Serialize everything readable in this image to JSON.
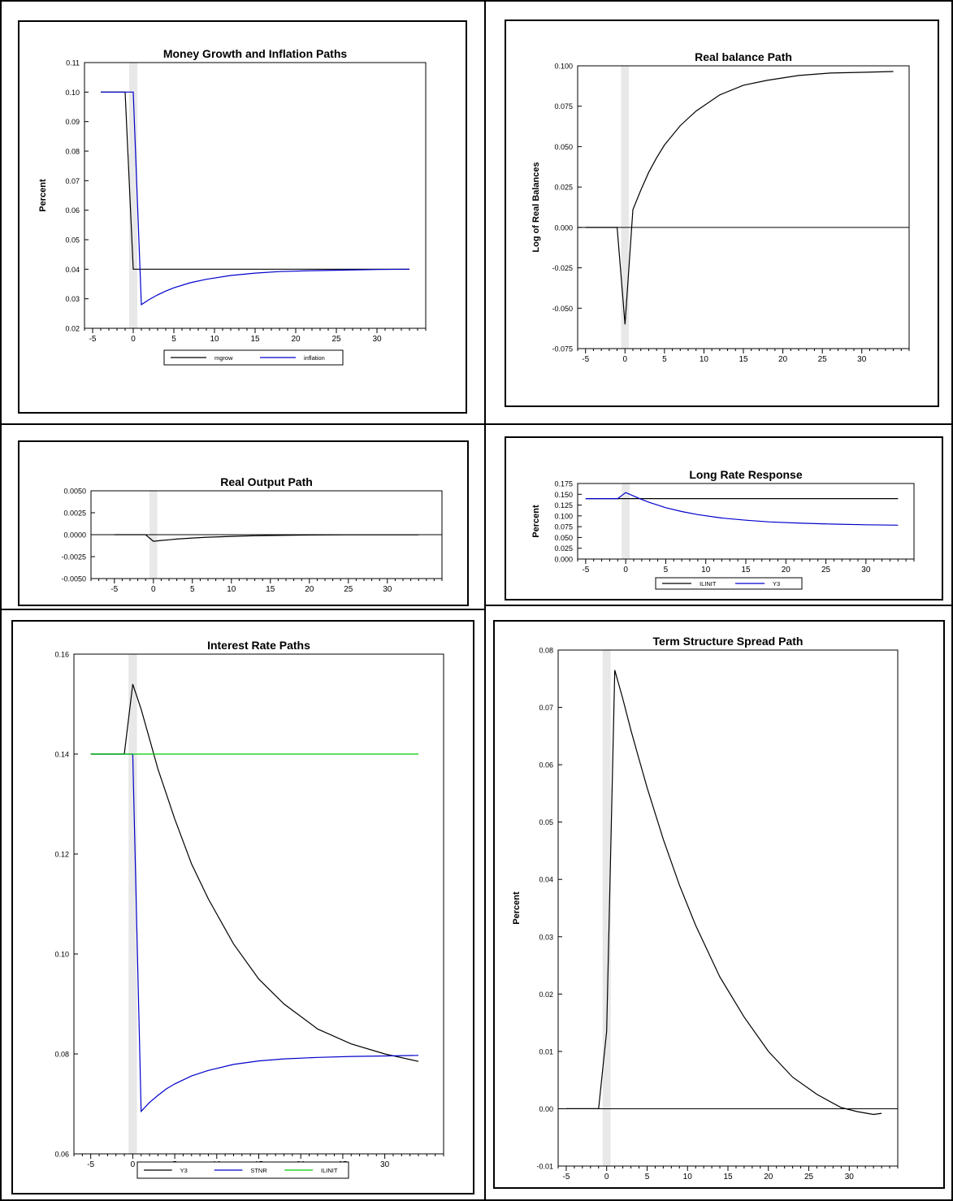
{
  "colors": {
    "black": "#000000",
    "blue": "#0000CC",
    "green": "#00CC00",
    "shade": "#E8E8E8"
  },
  "chart_data": [
    {
      "type": "line",
      "title": "Money Growth and Inflation Paths",
      "ylabel": "Percent",
      "xlim": [
        -6,
        36
      ],
      "ylim": [
        0.02,
        0.11
      ],
      "xticks": [
        -5,
        0,
        5,
        10,
        15,
        20,
        25,
        30
      ],
      "yticks": [
        0.02,
        0.03,
        0.04,
        0.05,
        0.06,
        0.07,
        0.08,
        0.09,
        0.1,
        0.11
      ],
      "ytick_labels": [
        "0.02",
        "0.03",
        "0.04",
        "0.05",
        "0.06",
        "0.07",
        "0.08",
        "0.09",
        "0.10",
        "0.11"
      ],
      "shade": [
        -0.5,
        0.5
      ],
      "legend": "bottom",
      "series": [
        {
          "name": "mgrow",
          "color": "black",
          "x": [
            -4,
            -1,
            0,
            1,
            34
          ],
          "y": [
            0.1,
            0.1,
            0.04,
            0.04,
            0.04
          ]
        },
        {
          "name": "inflation",
          "color": "blue",
          "x": [
            -4,
            0,
            1,
            2,
            3,
            4,
            5,
            7,
            9,
            12,
            15,
            18,
            22,
            26,
            30,
            34
          ],
          "y": [
            0.1,
            0.1,
            0.028,
            0.0298,
            0.0313,
            0.0326,
            0.0337,
            0.0354,
            0.0366,
            0.0379,
            0.0387,
            0.0392,
            0.0395,
            0.0397,
            0.0399,
            0.04
          ]
        }
      ]
    },
    {
      "type": "line",
      "title": "Real balance Path",
      "ylabel": "Log of Real Balances",
      "xlim": [
        -6,
        36
      ],
      "ylim": [
        -0.075,
        0.1
      ],
      "xticks": [
        -5,
        0,
        5,
        10,
        15,
        20,
        25,
        30
      ],
      "yticks": [
        -0.075,
        -0.05,
        -0.025,
        0.0,
        0.025,
        0.05,
        0.075,
        0.1
      ],
      "ytick_labels": [
        "-0.075",
        "-0.050",
        "-0.025",
        "0.000",
        "0.025",
        "0.050",
        "0.075",
        "0.100"
      ],
      "zero_line": 0,
      "shade": [
        -0.5,
        0.5
      ],
      "series": [
        {
          "name": "",
          "color": "black",
          "x": [
            -5,
            -1,
            0,
            1,
            2,
            3,
            4,
            5,
            7,
            9,
            12,
            15,
            18,
            22,
            26,
            30,
            34
          ],
          "y": [
            0,
            0,
            -0.06,
            0.011,
            0.023,
            0.034,
            0.043,
            0.051,
            0.063,
            0.072,
            0.082,
            0.088,
            0.091,
            0.094,
            0.0955,
            0.096,
            0.0965
          ]
        }
      ]
    },
    {
      "type": "line",
      "title": "Real Output Path",
      "ylabel": "",
      "xlim": [
        -8,
        37
      ],
      "ylim": [
        -0.005,
        0.005
      ],
      "xticks": [
        -5,
        0,
        5,
        10,
        15,
        20,
        25,
        30
      ],
      "yticks": [
        -0.005,
        -0.0025,
        0.0,
        0.0025,
        0.005
      ],
      "ytick_labels": [
        "-0.0050",
        "-0.0025",
        "0.0000",
        "0.0025",
        "0.0050"
      ],
      "zero_line": 0,
      "shade": [
        -0.5,
        0.5
      ],
      "series": [
        {
          "name": "",
          "color": "black",
          "x": [
            -5,
            -1,
            0,
            1,
            2,
            3,
            5,
            7,
            10,
            13,
            16,
            20,
            25,
            30,
            34
          ],
          "y": [
            0,
            0,
            -0.00075,
            -0.00066,
            -0.00058,
            -0.0005,
            -0.00038,
            -0.00029,
            -0.00019,
            -0.00012,
            -8e-05,
            -4e-05,
            -2e-05,
            -1e-05,
            -1e-05
          ]
        }
      ]
    },
    {
      "type": "line",
      "title": "Long Rate Response",
      "ylabel": "Percent",
      "xlim": [
        -6,
        36
      ],
      "ylim": [
        0.0,
        0.175
      ],
      "xticks": [
        -5,
        0,
        5,
        10,
        15,
        20,
        25,
        30
      ],
      "yticks": [
        0.0,
        0.025,
        0.05,
        0.075,
        0.1,
        0.125,
        0.15,
        0.175
      ],
      "ytick_labels": [
        "0.000",
        "0.025",
        "0.050",
        "0.075",
        "0.100",
        "0.125",
        "0.150",
        "0.175"
      ],
      "shade": [
        -0.5,
        0.5
      ],
      "legend": "bottom",
      "series": [
        {
          "name": "ILINIT",
          "color": "black",
          "x": [
            -5,
            34
          ],
          "y": [
            0.14,
            0.14
          ]
        },
        {
          "name": "Y3",
          "color": "blue",
          "x": [
            -5,
            -1,
            0,
            1,
            2,
            3,
            4,
            5,
            7,
            9,
            12,
            15,
            18,
            22,
            26,
            30,
            34
          ],
          "y": [
            0.14,
            0.14,
            0.154,
            0.146,
            0.138,
            0.131,
            0.125,
            0.119,
            0.11,
            0.103,
            0.095,
            0.09,
            0.086,
            0.083,
            0.081,
            0.0795,
            0.0785
          ]
        }
      ]
    },
    {
      "type": "line",
      "title": "Interest Rate Paths",
      "ylabel": "",
      "xlim": [
        -7,
        37
      ],
      "ylim": [
        0.06,
        0.16
      ],
      "xticks": [
        -5,
        0,
        5,
        10,
        15,
        20,
        25,
        30
      ],
      "yticks": [
        0.06,
        0.08,
        0.1,
        0.12,
        0.14,
        0.16
      ],
      "ytick_labels": [
        "0.06",
        "0.08",
        "0.10",
        "0.12",
        "0.14",
        "0.16"
      ],
      "shade": [
        -0.5,
        0.5
      ],
      "legend": "bottom",
      "series": [
        {
          "name": "Y3",
          "color": "black",
          "x": [
            -5,
            -1,
            0,
            1,
            2,
            3,
            4,
            5,
            7,
            9,
            12,
            15,
            18,
            22,
            26,
            30,
            34
          ],
          "y": [
            0.14,
            0.14,
            0.154,
            0.149,
            0.143,
            0.137,
            0.132,
            0.127,
            0.118,
            0.111,
            0.102,
            0.095,
            0.09,
            0.085,
            0.082,
            0.08,
            0.0785
          ]
        },
        {
          "name": "STNR",
          "color": "blue",
          "x": [
            -5,
            0,
            1,
            2,
            3,
            4,
            5,
            7,
            9,
            12,
            15,
            18,
            22,
            26,
            30,
            34
          ],
          "y": [
            0.14,
            0.14,
            0.0685,
            0.0703,
            0.0717,
            0.073,
            0.074,
            0.0756,
            0.0767,
            0.0779,
            0.0786,
            0.079,
            0.0793,
            0.0795,
            0.0796,
            0.0797
          ]
        },
        {
          "name": "ILINIT",
          "color": "green",
          "x": [
            -5,
            34
          ],
          "y": [
            0.14,
            0.14
          ]
        }
      ]
    },
    {
      "type": "line",
      "title": "Term Structure Spread Path",
      "ylabel": "Percent",
      "xlim": [
        -6,
        36
      ],
      "ylim": [
        -0.01,
        0.08
      ],
      "xticks": [
        -5,
        0,
        5,
        10,
        15,
        20,
        25,
        30
      ],
      "yticks": [
        -0.01,
        0.0,
        0.01,
        0.02,
        0.03,
        0.04,
        0.05,
        0.06,
        0.07,
        0.08
      ],
      "ytick_labels": [
        "-0.01",
        "0.00",
        "0.01",
        "0.02",
        "0.03",
        "0.04",
        "0.05",
        "0.06",
        "0.07",
        "0.08"
      ],
      "zero_line": 0,
      "shade": [
        -0.5,
        0.5
      ],
      "series": [
        {
          "name": "",
          "color": "black",
          "x": [
            -5,
            -1,
            0,
            1,
            2,
            3,
            4,
            5,
            7,
            9,
            11,
            14,
            17,
            20,
            23,
            26,
            29,
            31,
            33,
            34
          ],
          "y": [
            0,
            0,
            0.0135,
            0.0765,
            0.0715,
            0.066,
            0.061,
            0.056,
            0.047,
            0.039,
            0.032,
            0.023,
            0.016,
            0.01,
            0.0055,
            0.0025,
            0.0002,
            -0.0005,
            -0.001,
            -0.0008
          ]
        }
      ]
    }
  ]
}
